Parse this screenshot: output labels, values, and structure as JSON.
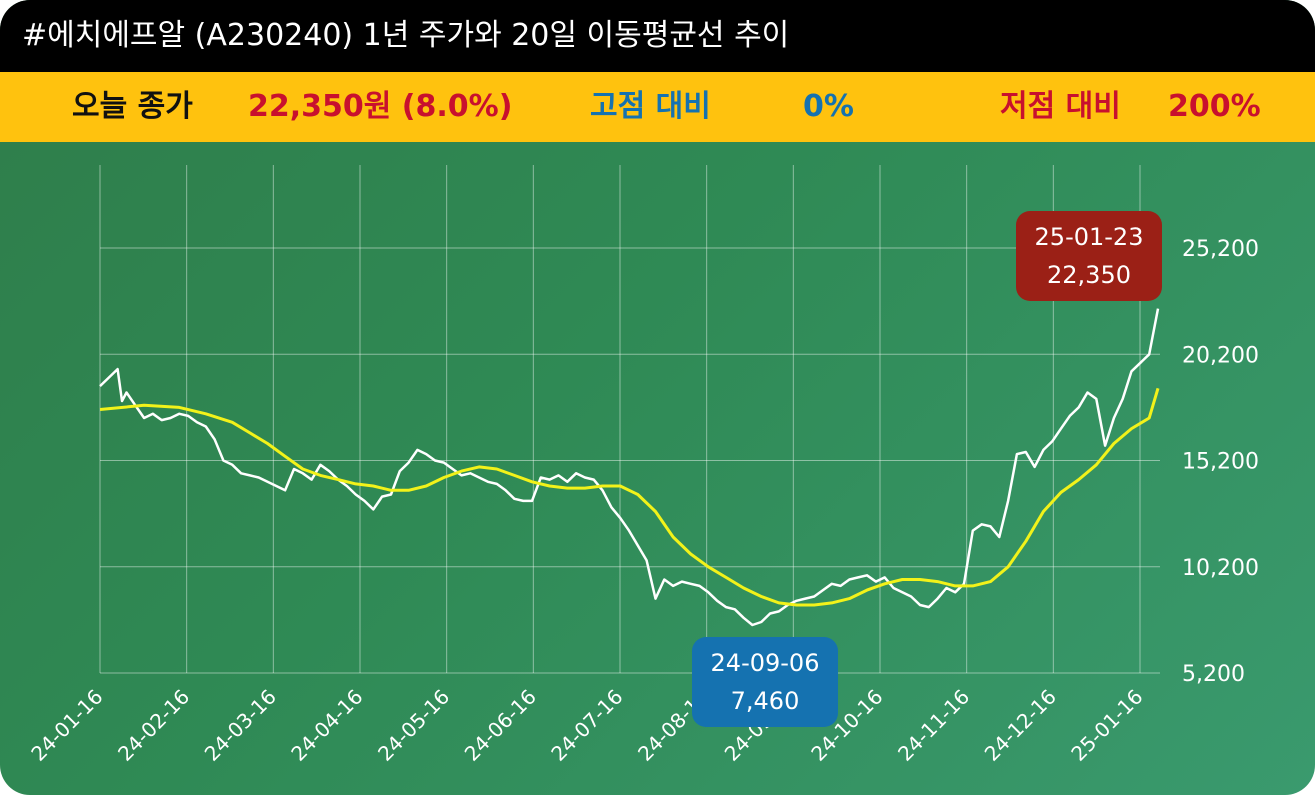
{
  "title": "#에치에프알 (A230240) 1년 주가와 20일 이동평균선 추이",
  "info": {
    "close_label": "오늘 종가",
    "close_value": "22,350원 (8.0%)",
    "high_label": "고점 대비",
    "high_value": "0%",
    "low_label": "저점 대비",
    "low_value": "200%"
  },
  "colors": {
    "price_line": "#ffffff",
    "ma_line": "#f2f21a",
    "high_callout": "#9b2016",
    "low_callout": "#1572b0",
    "close_text": "#c8102e",
    "high_text": "#1572b0",
    "low_text": "#c8102e"
  },
  "chart_data": {
    "type": "line",
    "y_ticks": [
      {
        "value": 25200,
        "label": "25,200"
      },
      {
        "value": 20200,
        "label": "20,200"
      },
      {
        "value": 15200,
        "label": "15,200"
      },
      {
        "value": 10200,
        "label": "10,200"
      },
      {
        "value": 5200,
        "label": "5,200"
      }
    ],
    "ylim": [
      5200,
      26000
    ],
    "x_ticks": [
      "24-01-16",
      "24-02-16",
      "24-03-16",
      "24-04-16",
      "24-05-16",
      "24-06-16",
      "24-07-16",
      "24-08-16",
      "24-09-16",
      "24-10-16",
      "24-11-16",
      "24-12-16",
      "25-01-16"
    ],
    "series": [
      {
        "key": "price",
        "points": [
          [
            0,
            18700
          ],
          [
            2,
            19100
          ],
          [
            4,
            19500
          ],
          [
            5,
            18000
          ],
          [
            6,
            18400
          ],
          [
            8,
            17800
          ],
          [
            10,
            17200
          ],
          [
            12,
            17400
          ],
          [
            14,
            17100
          ],
          [
            16,
            17200
          ],
          [
            18,
            17400
          ],
          [
            20,
            17300
          ],
          [
            22,
            17000
          ],
          [
            24,
            16800
          ],
          [
            26,
            16200
          ],
          [
            28,
            15200
          ],
          [
            30,
            15000
          ],
          [
            32,
            14600
          ],
          [
            34,
            14500
          ],
          [
            36,
            14400
          ],
          [
            38,
            14200
          ],
          [
            40,
            14000
          ],
          [
            42,
            13800
          ],
          [
            44,
            14800
          ],
          [
            46,
            14600
          ],
          [
            48,
            14300
          ],
          [
            50,
            15000
          ],
          [
            52,
            14700
          ],
          [
            54,
            14300
          ],
          [
            56,
            14000
          ],
          [
            58,
            13600
          ],
          [
            60,
            13300
          ],
          [
            62,
            12900
          ],
          [
            64,
            13500
          ],
          [
            66,
            13600
          ],
          [
            68,
            14700
          ],
          [
            70,
            15100
          ],
          [
            72,
            15700
          ],
          [
            74,
            15500
          ],
          [
            76,
            15200
          ],
          [
            78,
            15100
          ],
          [
            80,
            14800
          ],
          [
            82,
            14500
          ],
          [
            84,
            14600
          ],
          [
            86,
            14400
          ],
          [
            88,
            14200
          ],
          [
            90,
            14100
          ],
          [
            92,
            13800
          ],
          [
            94,
            13400
          ],
          [
            96,
            13300
          ],
          [
            98,
            13300
          ],
          [
            100,
            14400
          ],
          [
            102,
            14300
          ],
          [
            104,
            14500
          ],
          [
            106,
            14200
          ],
          [
            108,
            14600
          ],
          [
            110,
            14400
          ],
          [
            112,
            14300
          ],
          [
            114,
            13800
          ],
          [
            116,
            13000
          ],
          [
            118,
            12500
          ],
          [
            120,
            11900
          ],
          [
            122,
            11200
          ],
          [
            124,
            10500
          ],
          [
            126,
            8700
          ],
          [
            128,
            9600
          ],
          [
            130,
            9300
          ],
          [
            132,
            9500
          ],
          [
            134,
            9400
          ],
          [
            136,
            9300
          ],
          [
            138,
            9000
          ],
          [
            140,
            8600
          ],
          [
            142,
            8300
          ],
          [
            144,
            8200
          ],
          [
            146,
            7800
          ],
          [
            148,
            7460
          ],
          [
            150,
            7600
          ],
          [
            152,
            8000
          ],
          [
            154,
            8100
          ],
          [
            156,
            8400
          ],
          [
            158,
            8600
          ],
          [
            160,
            8700
          ],
          [
            162,
            8800
          ],
          [
            164,
            9100
          ],
          [
            166,
            9400
          ],
          [
            168,
            9300
          ],
          [
            170,
            9600
          ],
          [
            172,
            9700
          ],
          [
            174,
            9800
          ],
          [
            176,
            9500
          ],
          [
            178,
            9700
          ],
          [
            180,
            9200
          ],
          [
            182,
            9000
          ],
          [
            184,
            8800
          ],
          [
            186,
            8400
          ],
          [
            188,
            8300
          ],
          [
            190,
            8700
          ],
          [
            192,
            9200
          ],
          [
            194,
            9000
          ],
          [
            196,
            9400
          ],
          [
            198,
            11900
          ],
          [
            200,
            12200
          ],
          [
            202,
            12100
          ],
          [
            204,
            11600
          ],
          [
            206,
            13300
          ],
          [
            208,
            15500
          ],
          [
            210,
            15600
          ],
          [
            212,
            14900
          ],
          [
            214,
            15700
          ],
          [
            216,
            16100
          ],
          [
            218,
            16700
          ],
          [
            220,
            17300
          ],
          [
            222,
            17700
          ],
          [
            224,
            18400
          ],
          [
            226,
            18100
          ],
          [
            228,
            15900
          ],
          [
            230,
            17200
          ],
          [
            232,
            18100
          ],
          [
            234,
            19400
          ],
          [
            236,
            19800
          ],
          [
            238,
            20200
          ],
          [
            240,
            22350
          ]
        ]
      },
      {
        "key": "ma20",
        "points": [
          [
            0,
            17600
          ],
          [
            10,
            17800
          ],
          [
            18,
            17700
          ],
          [
            24,
            17400
          ],
          [
            30,
            17000
          ],
          [
            34,
            16500
          ],
          [
            38,
            16000
          ],
          [
            42,
            15400
          ],
          [
            46,
            14800
          ],
          [
            50,
            14500
          ],
          [
            54,
            14300
          ],
          [
            58,
            14100
          ],
          [
            62,
            14000
          ],
          [
            66,
            13800
          ],
          [
            70,
            13800
          ],
          [
            74,
            14000
          ],
          [
            78,
            14400
          ],
          [
            82,
            14700
          ],
          [
            86,
            14900
          ],
          [
            90,
            14800
          ],
          [
            94,
            14500
          ],
          [
            98,
            14200
          ],
          [
            102,
            14000
          ],
          [
            106,
            13900
          ],
          [
            110,
            13900
          ],
          [
            114,
            14000
          ],
          [
            118,
            14000
          ],
          [
            122,
            13600
          ],
          [
            126,
            12800
          ],
          [
            130,
            11600
          ],
          [
            134,
            10800
          ],
          [
            138,
            10200
          ],
          [
            142,
            9700
          ],
          [
            146,
            9200
          ],
          [
            150,
            8800
          ],
          [
            154,
            8500
          ],
          [
            158,
            8400
          ],
          [
            162,
            8400
          ],
          [
            166,
            8500
          ],
          [
            170,
            8700
          ],
          [
            174,
            9100
          ],
          [
            178,
            9400
          ],
          [
            182,
            9600
          ],
          [
            186,
            9600
          ],
          [
            190,
            9500
          ],
          [
            194,
            9300
          ],
          [
            198,
            9300
          ],
          [
            202,
            9500
          ],
          [
            206,
            10200
          ],
          [
            210,
            11400
          ],
          [
            214,
            12800
          ],
          [
            218,
            13700
          ],
          [
            222,
            14300
          ],
          [
            226,
            15000
          ],
          [
            230,
            16000
          ],
          [
            234,
            16700
          ],
          [
            238,
            17200
          ],
          [
            240,
            18600
          ]
        ]
      }
    ],
    "callouts": [
      {
        "key": "high",
        "date": "25-01-23",
        "value": "22,350"
      },
      {
        "key": "low",
        "date": "24-09-06",
        "value": "7,460"
      }
    ]
  }
}
